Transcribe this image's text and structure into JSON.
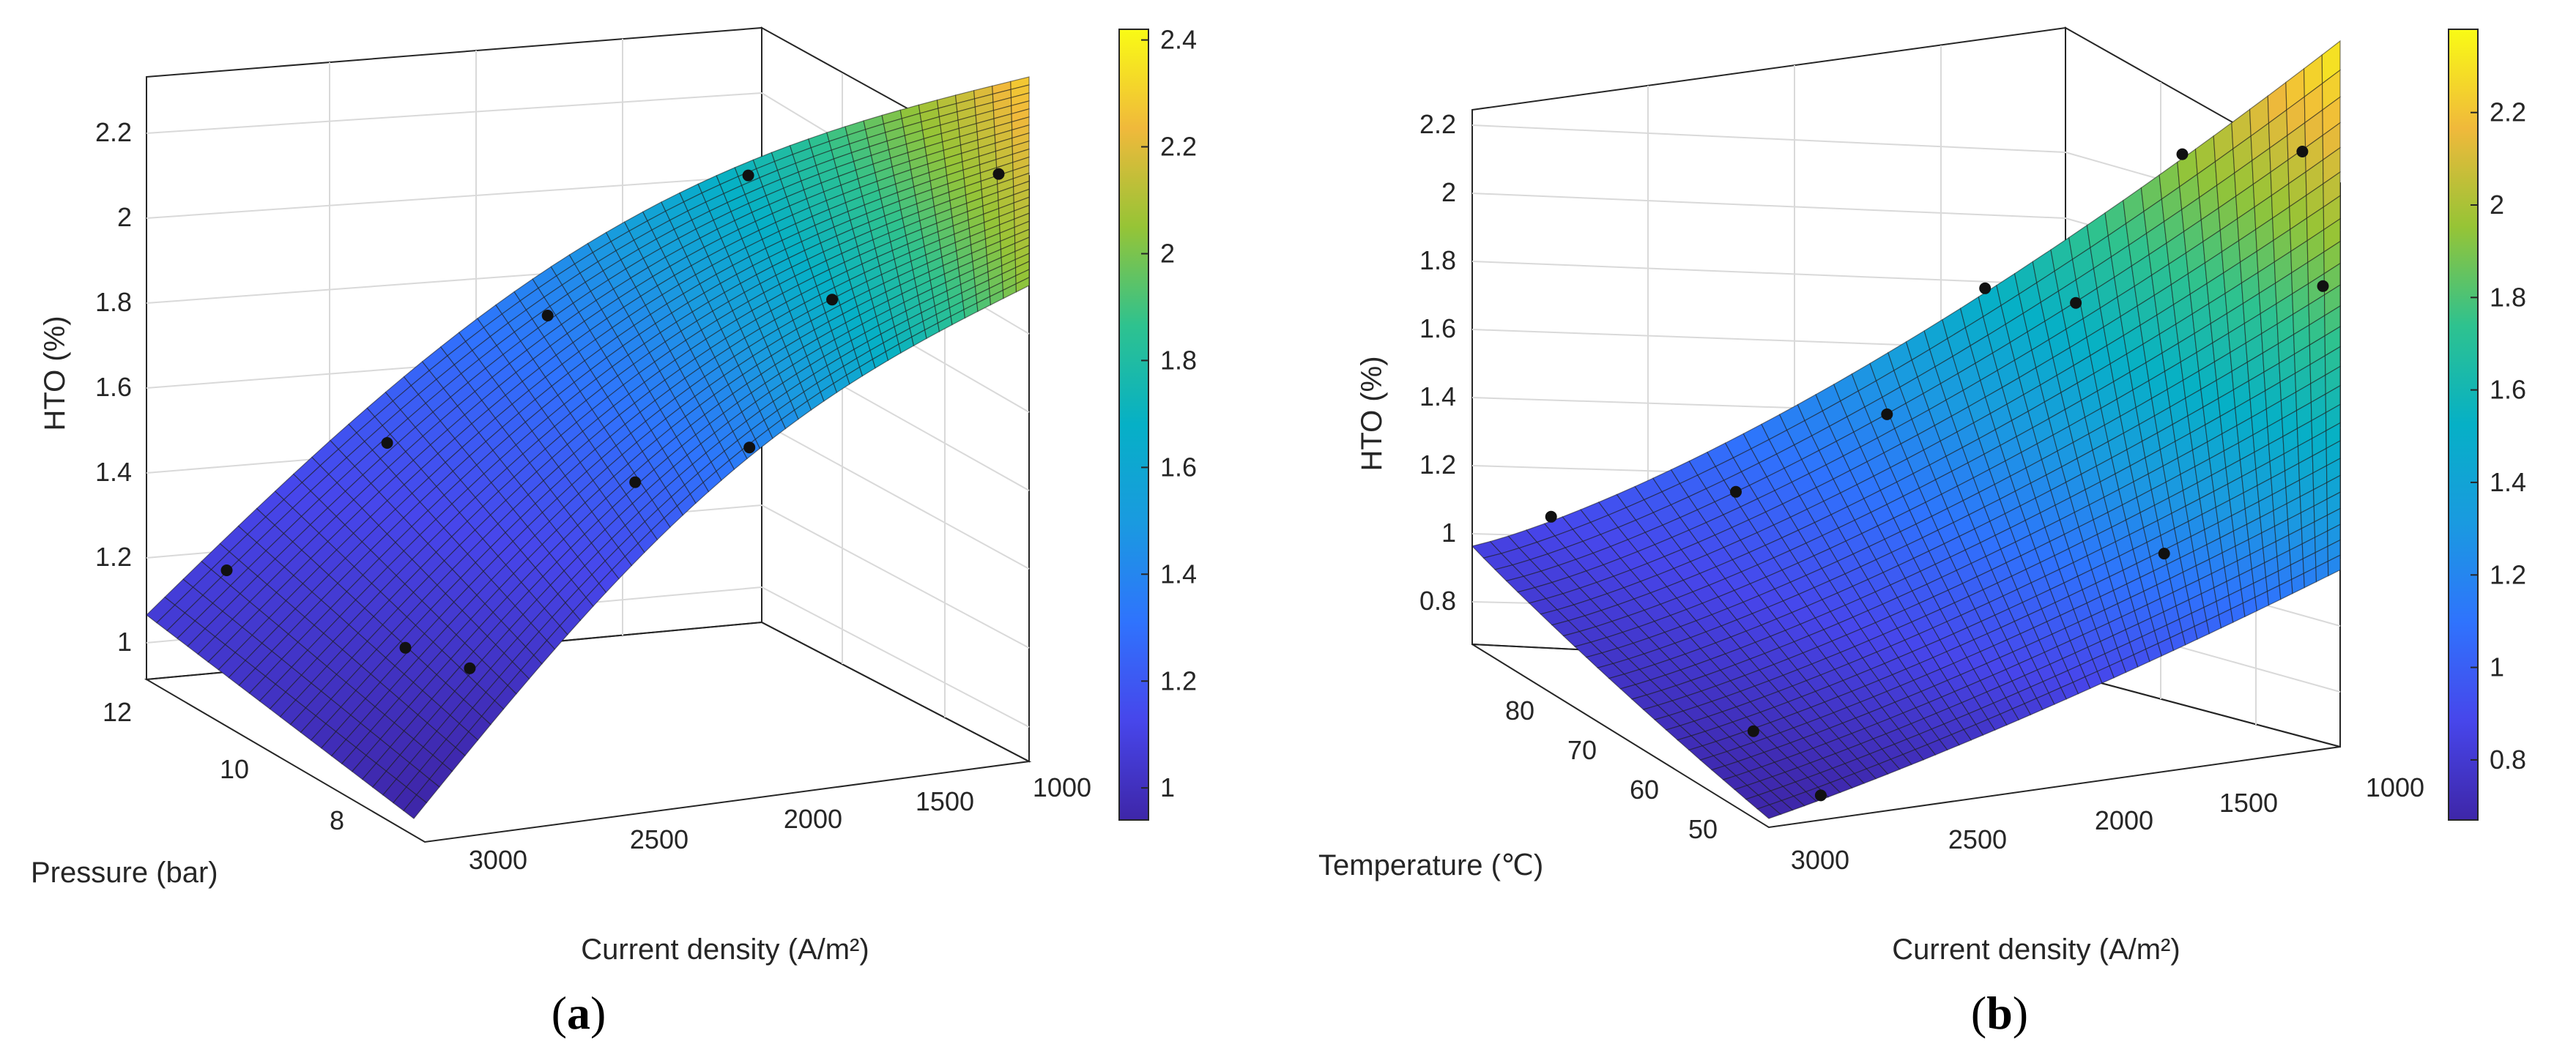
{
  "chart_data": [
    {
      "panel": "(a)",
      "type": "surface3d",
      "zlabel": "HTO (%)",
      "xlabel": "Current density (A/m²)",
      "ylabel": "Pressure (bar)",
      "x_ticks": [
        "3000",
        "2500",
        "2000",
        "1500",
        "1000"
      ],
      "y_ticks": [
        "12",
        "10",
        "8"
      ],
      "z_ticks": [
        "1",
        "1.2",
        "1.4",
        "1.6",
        "1.8",
        "2",
        "2.2"
      ],
      "xlim": [
        3300,
        900
      ],
      "ylim": [
        6.5,
        12.5
      ],
      "zlim": [
        0.88,
        2.35
      ],
      "colorbar": {
        "ticks": [
          "1",
          "1.2",
          "1.4",
          "1.6",
          "1.8",
          "2",
          "2.2",
          "2.4"
        ],
        "range": [
          0.94,
          2.42
        ]
      },
      "surface_corners": {
        "x3200_p12": 1.07,
        "x3200_p7": 0.94,
        "x1000_p12": 2.3,
        "x1000_p7": 2.05
      },
      "points": [
        {
          "x": 3000,
          "p": 12,
          "z": 1.15
        },
        {
          "x": 2600,
          "p": 12,
          "z": 1.45
        },
        {
          "x": 2200,
          "p": 12,
          "z": 1.75
        },
        {
          "x": 1700,
          "p": 12,
          "z": 2.08
        },
        {
          "x": 3000,
          "p": 7,
          "z": 0.94
        },
        {
          "x": 2200,
          "p": 9,
          "z": 1.37
        },
        {
          "x": 2000,
          "p": 7,
          "z": 1.46
        },
        {
          "x": 1600,
          "p": 9,
          "z": 1.8
        },
        {
          "x": 1100,
          "p": 8,
          "z": 2.1
        },
        {
          "x": 2900,
          "p": 9,
          "z": 0.98
        }
      ]
    },
    {
      "panel": "(b)",
      "type": "surface3d",
      "zlabel": "HTO (%)",
      "xlabel": "Current density (A/m²)",
      "ylabel": "Temperature (℃)",
      "x_ticks": [
        "3000",
        "2500",
        "2000",
        "1500",
        "1000"
      ],
      "y_ticks": [
        "80",
        "70",
        "60",
        "50"
      ],
      "z_ticks": [
        "0.8",
        "1",
        "1.2",
        "1.4",
        "1.6",
        "1.8",
        "2",
        "2.2"
      ],
      "xlim": [
        3300,
        900
      ],
      "ylim": [
        43,
        87
      ],
      "zlim": [
        0.65,
        2.3
      ],
      "colorbar": {
        "ticks": [
          "0.8",
          "1",
          "1.2",
          "1.4",
          "1.6",
          "1.8",
          "2",
          "2.2"
        ],
        "range": [
          0.67,
          2.38
        ]
      },
      "surface_corners": {
        "x3200_t85": 0.85,
        "x3200_t45": 0.67,
        "x1000_t85": 2.35,
        "x1000_t45": 1.2
      },
      "points": [
        {
          "x": 3000,
          "t": 85,
          "z": 0.84
        },
        {
          "x": 2600,
          "t": 80,
          "z": 1.02
        },
        {
          "x": 2200,
          "t": 80,
          "z": 1.3
        },
        {
          "x": 1900,
          "t": 85,
          "z": 1.7
        },
        {
          "x": 1700,
          "t": 80,
          "z": 1.72
        },
        {
          "x": 1400,
          "t": 85,
          "z": 2.2
        },
        {
          "x": 1100,
          "t": 80,
          "z": 2.15
        },
        {
          "x": 1050,
          "t": 70,
          "z": 1.9
        },
        {
          "x": 3000,
          "t": 55,
          "z": 0.72
        },
        {
          "x": 3000,
          "t": 45,
          "z": 0.69
        },
        {
          "x": 1600,
          "t": 55,
          "z": 1.1
        }
      ]
    }
  ]
}
